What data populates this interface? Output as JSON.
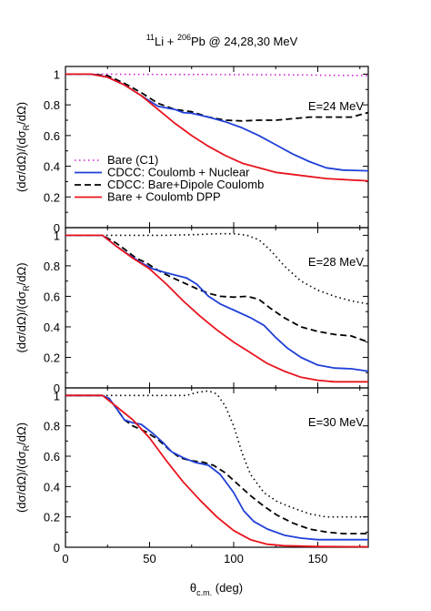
{
  "colors": {
    "bare": "#d020d0",
    "cdcc_nuclear": "#1f3fd8",
    "cdcc_dipole": "#000000",
    "bare_dpp": "#e8141e"
  },
  "chart_data": {
    "type": "line",
    "title": {
      "pre": "Li + ",
      "sup1": "11",
      "sup2": "206",
      "mid": "Pb @ 24,28,30 MeV"
    },
    "xlabel": {
      "sym": "θ",
      "sub": "c.m.",
      "unit": " (deg)"
    },
    "ylabel": {
      "text": "(dσ/dΩ)/(dσ/dΩ)",
      "sub": "R"
    },
    "xlim": [
      0,
      180
    ],
    "ylim": [
      0,
      1.05
    ],
    "x_ticks": [
      "0",
      "50",
      "100",
      "150"
    ],
    "y_ticks": [
      "0",
      "0.2",
      "0.4",
      "0.6",
      "0.8",
      "1"
    ],
    "legend": {
      "placement": "lower-left of top panel",
      "entries": [
        {
          "label": "Bare (C1)",
          "series": "bare",
          "dash": "dotted"
        },
        {
          "label": "CDCC: Coulomb + Nuclear",
          "series": "cdcc_nuclear",
          "dash": "solid"
        },
        {
          "label": "CDCC: Bare+Dipole Coulomb",
          "series": "cdcc_dipole",
          "dash": "dashed"
        },
        {
          "label": "Bare + Coulomb DPP",
          "series": "bare_dpp",
          "dash": "solid"
        }
      ]
    },
    "panels": [
      {
        "label": "E=24 MeV",
        "bare_color": "bare",
        "series": [
          {
            "key": "bare",
            "dash": "dotted",
            "points": [
              [
                0,
                1
              ],
              [
                20,
                1
              ],
              [
                60,
                0.998
              ],
              [
                100,
                0.997
              ],
              [
                140,
                0.995
              ],
              [
                180,
                0.99
              ]
            ]
          },
          {
            "key": "cdcc_dipole",
            "dash": "dashed",
            "points": [
              [
                0,
                1
              ],
              [
                15,
                1
              ],
              [
                25,
                0.99
              ],
              [
                35,
                0.94
              ],
              [
                45,
                0.88
              ],
              [
                55,
                0.81
              ],
              [
                65,
                0.77
              ],
              [
                75,
                0.755
              ],
              [
                85,
                0.72
              ],
              [
                95,
                0.7
              ],
              [
                105,
                0.695
              ],
              [
                115,
                0.7
              ],
              [
                125,
                0.7
              ],
              [
                135,
                0.71
              ],
              [
                145,
                0.72
              ],
              [
                160,
                0.72
              ],
              [
                170,
                0.72
              ],
              [
                180,
                0.75
              ]
            ]
          },
          {
            "key": "cdcc_nuclear",
            "dash": "solid",
            "points": [
              [
                0,
                1
              ],
              [
                15,
                1
              ],
              [
                25,
                0.98
              ],
              [
                35,
                0.93
              ],
              [
                45,
                0.86
              ],
              [
                55,
                0.79
              ],
              [
                65,
                0.77
              ],
              [
                70,
                0.75
              ],
              [
                75,
                0.745
              ],
              [
                85,
                0.72
              ],
              [
                95,
                0.69
              ],
              [
                105,
                0.65
              ],
              [
                115,
                0.6
              ],
              [
                125,
                0.54
              ],
              [
                135,
                0.48
              ],
              [
                145,
                0.43
              ],
              [
                155,
                0.39
              ],
              [
                165,
                0.375
              ],
              [
                180,
                0.37
              ]
            ]
          },
          {
            "key": "bare_dpp",
            "dash": "solid",
            "points": [
              [
                0,
                1
              ],
              [
                15,
                1
              ],
              [
                25,
                0.98
              ],
              [
                35,
                0.93
              ],
              [
                45,
                0.86
              ],
              [
                55,
                0.77
              ],
              [
                65,
                0.68
              ],
              [
                75,
                0.6
              ],
              [
                85,
                0.53
              ],
              [
                95,
                0.47
              ],
              [
                105,
                0.42
              ],
              [
                115,
                0.39
              ],
              [
                125,
                0.36
              ],
              [
                140,
                0.34
              ],
              [
                155,
                0.32
              ],
              [
                170,
                0.31
              ],
              [
                180,
                0.305
              ]
            ]
          }
        ]
      },
      {
        "label": "E=28 MeV",
        "bare_color": "cdcc_dipole",
        "series": [
          {
            "key": "bare",
            "dash": "dotted",
            "points": [
              [
                0,
                1
              ],
              [
                20,
                1
              ],
              [
                40,
                1
              ],
              [
                60,
                1
              ],
              [
                80,
                1.005
              ],
              [
                90,
                1.01
              ],
              [
                100,
                1.01
              ],
              [
                108,
                1
              ],
              [
                115,
                0.97
              ],
              [
                122,
                0.9
              ],
              [
                130,
                0.8
              ],
              [
                140,
                0.7
              ],
              [
                150,
                0.64
              ],
              [
                160,
                0.6
              ],
              [
                170,
                0.57
              ],
              [
                180,
                0.55
              ]
            ]
          },
          {
            "key": "cdcc_dipole",
            "dash": "dashed",
            "points": [
              [
                0,
                1
              ],
              [
                15,
                1
              ],
              [
                22,
                1
              ],
              [
                30,
                0.95
              ],
              [
                35,
                0.91
              ],
              [
                42,
                0.85
              ],
              [
                48,
                0.82
              ],
              [
                55,
                0.77
              ],
              [
                62,
                0.73
              ],
              [
                70,
                0.69
              ],
              [
                78,
                0.65
              ],
              [
                85,
                0.62
              ],
              [
                92,
                0.6
              ],
              [
                100,
                0.595
              ],
              [
                108,
                0.6
              ],
              [
                115,
                0.58
              ],
              [
                122,
                0.52
              ],
              [
                130,
                0.46
              ],
              [
                140,
                0.4
              ],
              [
                150,
                0.37
              ],
              [
                160,
                0.35
              ],
              [
                170,
                0.34
              ],
              [
                180,
                0.3
              ]
            ]
          },
          {
            "key": "cdcc_nuclear",
            "dash": "solid",
            "points": [
              [
                0,
                1
              ],
              [
                15,
                1
              ],
              [
                22,
                1
              ],
              [
                30,
                0.93
              ],
              [
                38,
                0.87
              ],
              [
                45,
                0.82
              ],
              [
                52,
                0.78
              ],
              [
                58,
                0.76
              ],
              [
                65,
                0.74
              ],
              [
                72,
                0.72
              ],
              [
                78,
                0.68
              ],
              [
                85,
                0.6
              ],
              [
                92,
                0.55
              ],
              [
                100,
                0.51
              ],
              [
                110,
                0.46
              ],
              [
                118,
                0.41
              ],
              [
                125,
                0.33
              ],
              [
                132,
                0.26
              ],
              [
                140,
                0.2
              ],
              [
                150,
                0.15
              ],
              [
                160,
                0.13
              ],
              [
                170,
                0.125
              ],
              [
                180,
                0.11
              ]
            ]
          },
          {
            "key": "bare_dpp",
            "dash": "solid",
            "points": [
              [
                0,
                1
              ],
              [
                15,
                1
              ],
              [
                22,
                1
              ],
              [
                30,
                0.93
              ],
              [
                40,
                0.85
              ],
              [
                50,
                0.78
              ],
              [
                60,
                0.68
              ],
              [
                70,
                0.57
              ],
              [
                80,
                0.47
              ],
              [
                90,
                0.38
              ],
              [
                100,
                0.3
              ],
              [
                110,
                0.23
              ],
              [
                120,
                0.16
              ],
              [
                130,
                0.11
              ],
              [
                140,
                0.07
              ],
              [
                150,
                0.05
              ],
              [
                160,
                0.04
              ],
              [
                170,
                0.04
              ],
              [
                180,
                0.04
              ]
            ]
          }
        ]
      },
      {
        "label": "E=30 MeV",
        "bare_color": "cdcc_dipole",
        "series": [
          {
            "key": "bare",
            "dash": "dotted",
            "points": [
              [
                0,
                1
              ],
              [
                20,
                1
              ],
              [
                40,
                1
              ],
              [
                60,
                1
              ],
              [
                72,
                1
              ],
              [
                78,
                1.02
              ],
              [
                85,
                1.03
              ],
              [
                90,
                1.01
              ],
              [
                95,
                0.93
              ],
              [
                100,
                0.8
              ],
              [
                105,
                0.62
              ],
              [
                110,
                0.48
              ],
              [
                118,
                0.36
              ],
              [
                126,
                0.3
              ],
              [
                135,
                0.26
              ],
              [
                145,
                0.22
              ],
              [
                155,
                0.2
              ],
              [
                165,
                0.2
              ],
              [
                180,
                0.2
              ]
            ]
          },
          {
            "key": "cdcc_dipole",
            "dash": "dashed",
            "points": [
              [
                0,
                1
              ],
              [
                15,
                1
              ],
              [
                22,
                1
              ],
              [
                26,
                0.98
              ],
              [
                30,
                0.92
              ],
              [
                35,
                0.84
              ],
              [
                40,
                0.8
              ],
              [
                48,
                0.76
              ],
              [
                55,
                0.71
              ],
              [
                62,
                0.64
              ],
              [
                68,
                0.59
              ],
              [
                75,
                0.57
              ],
              [
                82,
                0.56
              ],
              [
                88,
                0.54
              ],
              [
                95,
                0.49
              ],
              [
                102,
                0.42
              ],
              [
                110,
                0.34
              ],
              [
                118,
                0.27
              ],
              [
                126,
                0.21
              ],
              [
                135,
                0.16
              ],
              [
                145,
                0.12
              ],
              [
                155,
                0.1
              ],
              [
                165,
                0.09
              ],
              [
                180,
                0.09
              ]
            ]
          },
          {
            "key": "cdcc_nuclear",
            "dash": "solid",
            "points": [
              [
                0,
                1
              ],
              [
                15,
                1
              ],
              [
                22,
                1
              ],
              [
                26,
                0.98
              ],
              [
                30,
                0.92
              ],
              [
                35,
                0.84
              ],
              [
                40,
                0.82
              ],
              [
                45,
                0.81
              ],
              [
                52,
                0.75
              ],
              [
                58,
                0.69
              ],
              [
                63,
                0.63
              ],
              [
                70,
                0.59
              ],
              [
                77,
                0.56
              ],
              [
                85,
                0.54
              ],
              [
                92,
                0.48
              ],
              [
                100,
                0.36
              ],
              [
                106,
                0.24
              ],
              [
                112,
                0.17
              ],
              [
                120,
                0.12
              ],
              [
                130,
                0.08
              ],
              [
                140,
                0.06
              ],
              [
                150,
                0.05
              ],
              [
                165,
                0.05
              ],
              [
                180,
                0.05
              ]
            ]
          },
          {
            "key": "bare_dpp",
            "dash": "solid",
            "points": [
              [
                0,
                1
              ],
              [
                15,
                1
              ],
              [
                22,
                1
              ],
              [
                30,
                0.93
              ],
              [
                40,
                0.84
              ],
              [
                50,
                0.72
              ],
              [
                60,
                0.57
              ],
              [
                70,
                0.43
              ],
              [
                80,
                0.31
              ],
              [
                90,
                0.2
              ],
              [
                100,
                0.11
              ],
              [
                110,
                0.05
              ],
              [
                120,
                0.02
              ],
              [
                130,
                0.01
              ],
              [
                150,
                0.005
              ],
              [
                180,
                0.003
              ]
            ]
          }
        ]
      }
    ]
  }
}
